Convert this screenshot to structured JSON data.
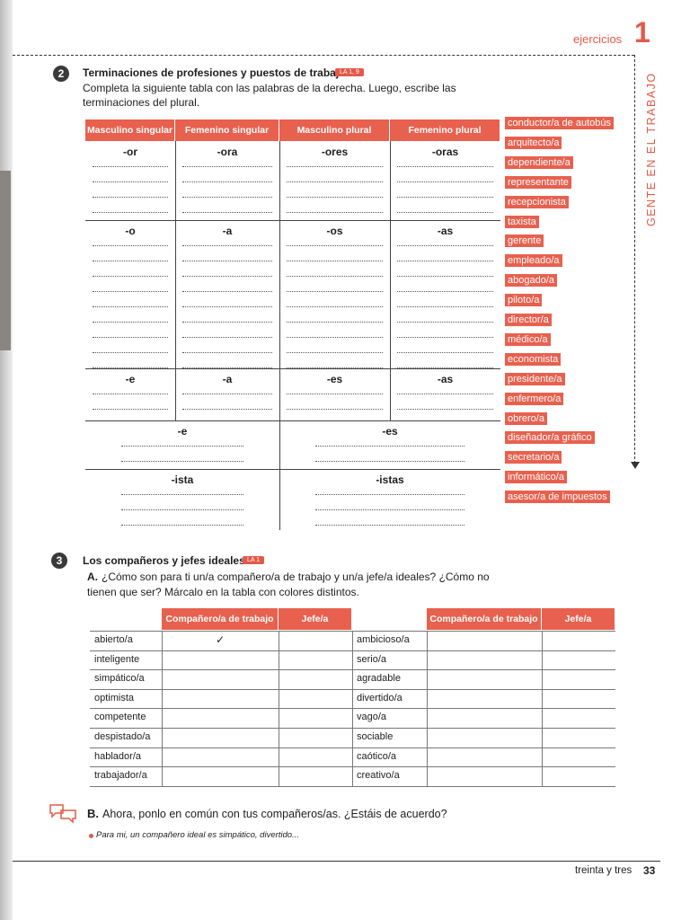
{
  "header": {
    "section": "ejercicios",
    "number": "1",
    "side": "GENTE EN EL TRABAJO"
  },
  "exercise2": {
    "number": "2",
    "title": "Terminaciones de profesiones y puestos de trabajo",
    "tag": "LA 1, 9",
    "instructions": [
      "Completa la siguiente tabla con las palabras de la derecha. Luego, escribe las",
      "terminaciones del plural."
    ],
    "table": {
      "headers": [
        "Masculino singular",
        "Femenino singular",
        "Masculino plural",
        "Femenino plural"
      ],
      "groups": [
        [
          "-or",
          "-ora",
          "-ores",
          "-oras"
        ],
        [
          "-o",
          "-a",
          "-os",
          "-as"
        ],
        [
          "-e",
          "-a",
          "-es",
          "-as"
        ],
        [
          "-e",
          "-es"
        ],
        [
          "-ista",
          "-istas"
        ]
      ]
    },
    "words": [
      "conductor/a de autobús",
      "arquitecto/a",
      "dependiente/a",
      "representante",
      "recepcionista",
      "taxista",
      "gerente",
      "empleado/a",
      "abogado/a",
      "piloto/a",
      "director/a",
      "médico/a",
      "economista",
      "presidente/a",
      "enfermero/a",
      "obrero/a",
      "diseñador/a gráfico",
      "secretario/a",
      "informático/a",
      "asesor/a de impuestos"
    ]
  },
  "exercise3": {
    "number": "3",
    "title": "Los compañeros y jefes ideales",
    "tag": "LA 1",
    "a_label": "A.",
    "a_text": [
      "¿Cómo son para ti un/a compañero/a de trabajo y un/a jefe/a ideales? ¿Cómo no",
      "tienen que ser? Márcalo en la tabla con colores distintos."
    ],
    "table": {
      "headers": [
        "Compañero/a de trabajo",
        "Jefe/a"
      ],
      "left": [
        "abierto/a",
        "inteligente",
        "simpático/a",
        "optimista",
        "competente",
        "despistado/a",
        "hablador/a",
        "trabajador/a"
      ],
      "right": [
        "ambicioso/a",
        "serio/a",
        "agradable",
        "divertido/a",
        "vago/a",
        "sociable",
        "caótico/a",
        "creativo/a"
      ],
      "check": "✓"
    },
    "b_label": "B.",
    "b_text": "Ahora, ponlo en común con tus compañeros/as. ¿Estáis de acuerdo?",
    "example": "Para mi, un compañero ideal es simpático, divertido..."
  },
  "footer": {
    "text": "treinta y tres",
    "page": "33"
  }
}
